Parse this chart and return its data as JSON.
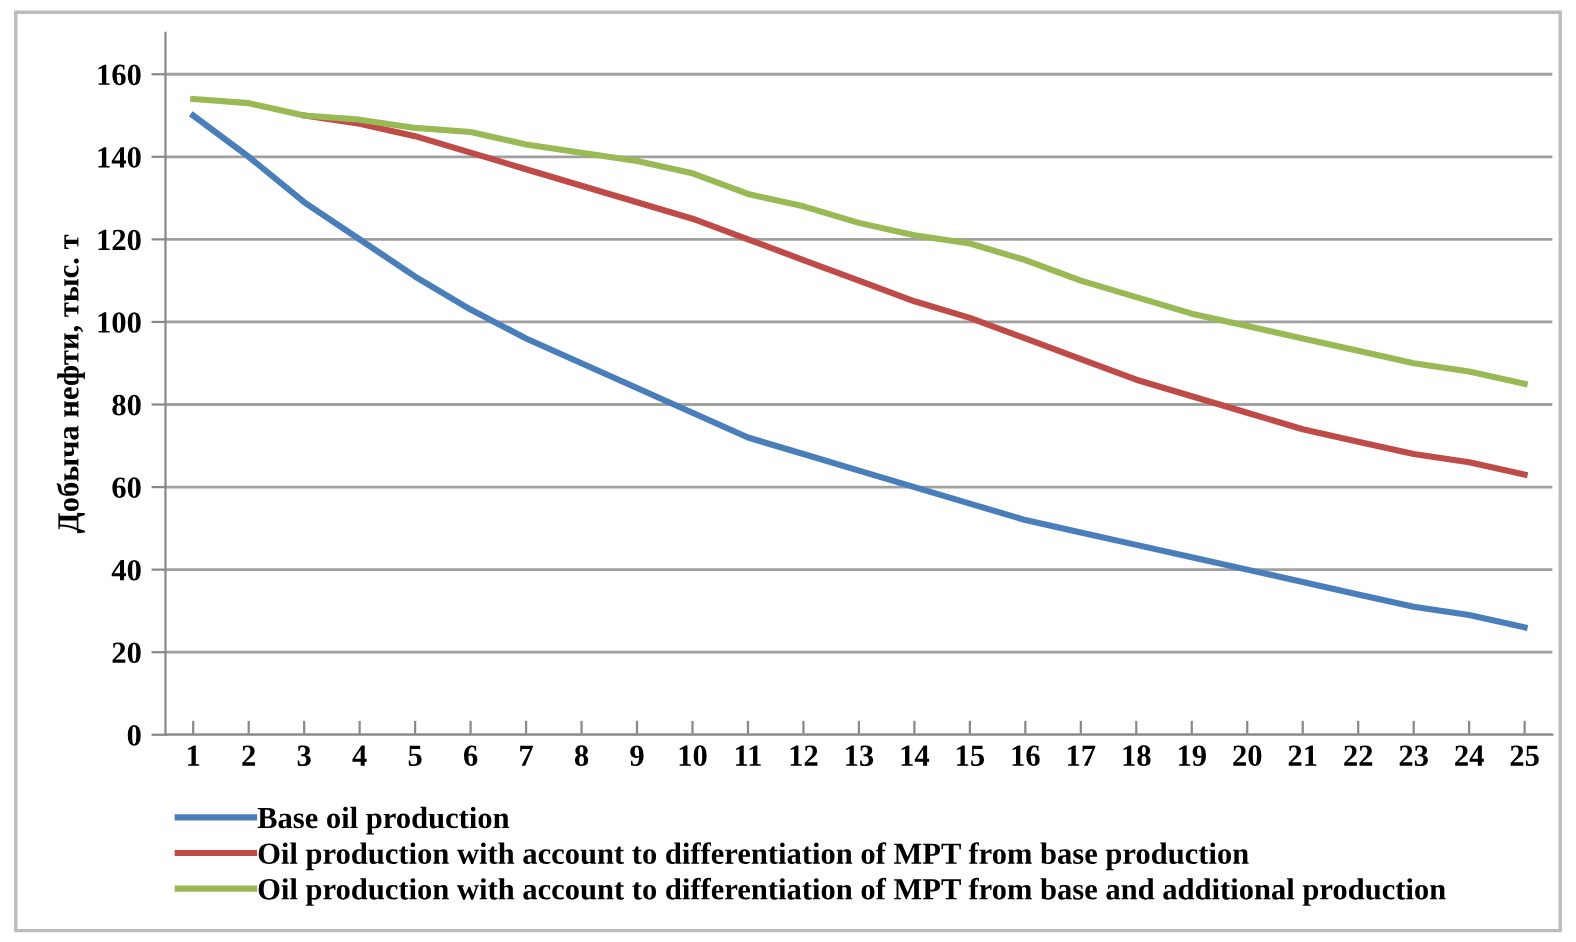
{
  "chart_data": {
    "type": "line",
    "ylabel": "Добыча нефти, тыс. т",
    "categories": [
      "1",
      "2",
      "3",
      "4",
      "5",
      "6",
      "7",
      "8",
      "9",
      "10",
      "11",
      "12",
      "13",
      "14",
      "15",
      "16",
      "17",
      "18",
      "19",
      "20",
      "21",
      "22",
      "23",
      "24",
      "25"
    ],
    "ylim": [
      0,
      170
    ],
    "yticks": [
      0,
      20,
      40,
      60,
      80,
      100,
      120,
      140,
      160
    ],
    "grid": "y",
    "legend": "bottom left",
    "series": [
      {
        "name": "Base oil production",
        "color": "#4a7ebb",
        "values": [
          150,
          140,
          129,
          120,
          111,
          103,
          96,
          90,
          84,
          78,
          72,
          68,
          64,
          60,
          56,
          52,
          49,
          46,
          43,
          40,
          37,
          34,
          31,
          29,
          26
        ]
      },
      {
        "name": "Oil production with account to differentiation of MPT from base production",
        "color": "#be4b48",
        "values": [
          null,
          null,
          150,
          148,
          145,
          141,
          137,
          133,
          129,
          125,
          120,
          115,
          110,
          105,
          101,
          96,
          91,
          86,
          82,
          78,
          74,
          71,
          68,
          66,
          63
        ]
      },
      {
        "name": "Oil production with account to differentiation of MPT from base and additional production",
        "color": "#98b954",
        "values": [
          154,
          153,
          150,
          149,
          147,
          146,
          143,
          141,
          139,
          136,
          131,
          128,
          124,
          121,
          119,
          115,
          110,
          106,
          102,
          99,
          96,
          93,
          90,
          88,
          85
        ]
      }
    ]
  }
}
